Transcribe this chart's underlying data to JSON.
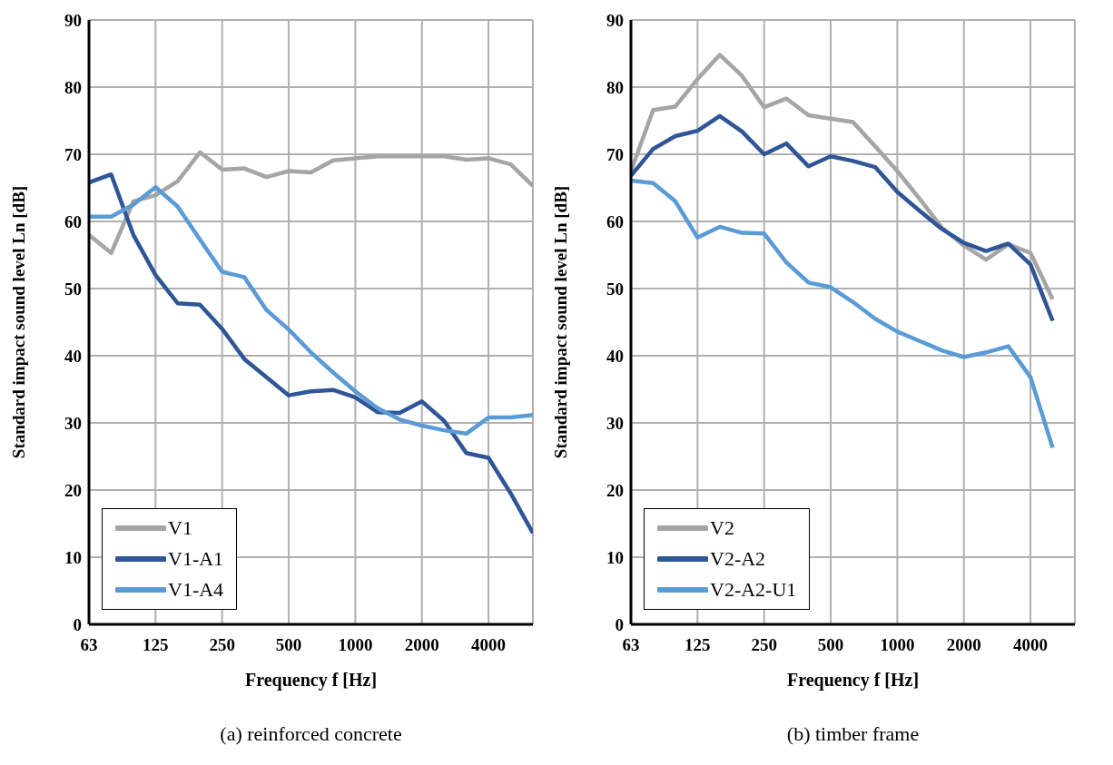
{
  "chart_data": [
    {
      "type": "line",
      "xlabel": "Frequency f [Hz]",
      "ylabel": "Standard impact sound level Ln [dB]",
      "annotations": [
        "(a) reinforced concrete"
      ],
      "categories": [
        "63",
        null,
        null,
        "125",
        null,
        null,
        "250",
        null,
        null,
        "500",
        null,
        null,
        "1000",
        null,
        null,
        "2000",
        null,
        null,
        "4000",
        null,
        null
      ],
      "series": [
        {
          "name": "V1",
          "color": "#a5a5a5",
          "values": [
            58.0,
            55.3,
            63.0,
            63.9,
            66.0,
            70.3,
            67.7,
            67.9,
            66.6,
            67.5,
            67.3,
            69.1,
            69.4,
            69.7,
            69.7,
            69.7,
            69.7,
            69.2,
            69.4,
            68.5,
            65.3
          ]
        },
        {
          "name": "V1-A1",
          "color": "#2f5597",
          "values": [
            65.8,
            67.0,
            58.0,
            52.0,
            47.8,
            47.6,
            44.0,
            39.5,
            36.8,
            34.1,
            34.7,
            34.9,
            33.8,
            31.6,
            31.5,
            33.2,
            30.3,
            25.5,
            24.8,
            19.5,
            13.6
          ]
        },
        {
          "name": "V1-A4",
          "color": "#5b9bd5",
          "values": [
            60.7,
            60.7,
            62.5,
            65.1,
            62.2,
            57.3,
            52.5,
            51.7,
            46.8,
            43.9,
            40.5,
            37.5,
            34.7,
            32.2,
            30.5,
            29.6,
            28.9,
            28.4,
            30.8,
            30.8,
            31.2
          ]
        }
      ],
      "ylim": [
        0,
        90
      ],
      "yticks": [
        0,
        10,
        20,
        30,
        40,
        50,
        60,
        70,
        80,
        90
      ],
      "grid": true,
      "legend": "bottom left",
      "marker": "none",
      "line_style": "solid"
    },
    {
      "type": "line",
      "xlabel": "Frequency f [Hz]",
      "ylabel": "Standard impact sound level Ln [dB]",
      "annotations": [
        "(b) timber frame"
      ],
      "categories": [
        "63",
        null,
        null,
        "125",
        null,
        null,
        "250",
        null,
        null,
        "500",
        null,
        null,
        "1000",
        null,
        null,
        "2000",
        null,
        null,
        "4000",
        null,
        null
      ],
      "series": [
        {
          "name": "V2",
          "color": "#a5a5a5",
          "values": [
            67.5,
            76.6,
            77.1,
            81.2,
            84.8,
            81.7,
            77.0,
            78.3,
            75.8,
            75.3,
            74.8,
            71.2,
            67.5,
            63.4,
            59.1,
            56.4,
            54.3,
            56.6,
            55.3,
            48.4,
            null
          ]
        },
        {
          "name": "V2-A2",
          "color": "#2f5597",
          "values": [
            66.8,
            70.8,
            72.7,
            73.5,
            75.7,
            73.4,
            70.0,
            71.6,
            68.2,
            69.7,
            69.0,
            68.1,
            64.4,
            61.6,
            58.9,
            56.8,
            55.6,
            56.7,
            53.6,
            45.2,
            null
          ]
        },
        {
          "name": "V2-A2-U1",
          "color": "#5b9bd5",
          "values": [
            66.1,
            65.7,
            63.0,
            57.6,
            59.2,
            58.3,
            58.2,
            53.9,
            50.9,
            50.2,
            48.0,
            45.5,
            43.6,
            42.2,
            40.8,
            39.8,
            40.5,
            41.4,
            36.8,
            26.3,
            null
          ]
        }
      ],
      "ylim": [
        0,
        90
      ],
      "yticks": [
        0,
        10,
        20,
        30,
        40,
        50,
        60,
        70,
        80,
        90
      ],
      "grid": true,
      "legend": "bottom left",
      "marker": "none",
      "line_style": "solid"
    }
  ]
}
